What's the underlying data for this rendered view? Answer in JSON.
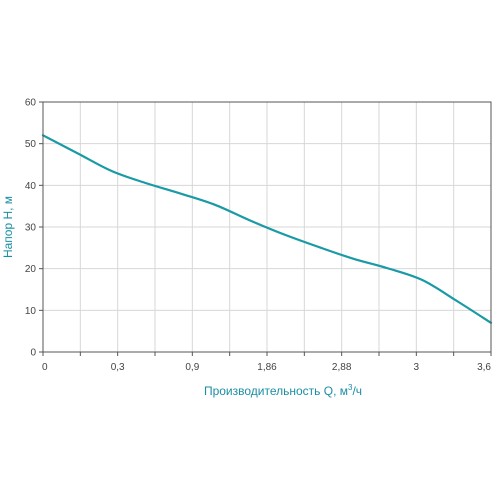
{
  "chart_data": {
    "type": "line",
    "title": "",
    "xlabel": "Производительность Q, м³/ч",
    "ylabel": "Напор H, м",
    "x_tick_labels": [
      "0",
      "0,3",
      "0,9",
      "1,86",
      "2,88",
      "3",
      "3,6"
    ],
    "y_ticks": [
      0,
      10,
      20,
      30,
      40,
      50,
      60
    ],
    "ylim": [
      0,
      60
    ],
    "grid": true,
    "series": [
      {
        "points": [
          {
            "x": 0,
            "y": 52
          },
          {
            "x": 0.3,
            "y": 47.7
          },
          {
            "x": 0.6,
            "y": 43.4
          },
          {
            "x": 0.9,
            "y": 40.5
          },
          {
            "x": 1.2,
            "y": 38
          },
          {
            "x": 1.5,
            "y": 35.3
          },
          {
            "x": 1.8,
            "y": 31.6
          },
          {
            "x": 2.1,
            "y": 28.2
          },
          {
            "x": 2.4,
            "y": 25.2
          },
          {
            "x": 2.7,
            "y": 22.4
          },
          {
            "x": 3.0,
            "y": 20.1
          },
          {
            "x": 3.3,
            "y": 17.3
          },
          {
            "x": 3.6,
            "y": 12.3
          },
          {
            "x": 3.9,
            "y": 7
          }
        ]
      }
    ],
    "colors": {
      "line": "#1a9aa5",
      "axis_title": "#1a8ea3",
      "grid": "#d7d7d7",
      "frame": "#555555",
      "ticks": "#444444"
    }
  }
}
